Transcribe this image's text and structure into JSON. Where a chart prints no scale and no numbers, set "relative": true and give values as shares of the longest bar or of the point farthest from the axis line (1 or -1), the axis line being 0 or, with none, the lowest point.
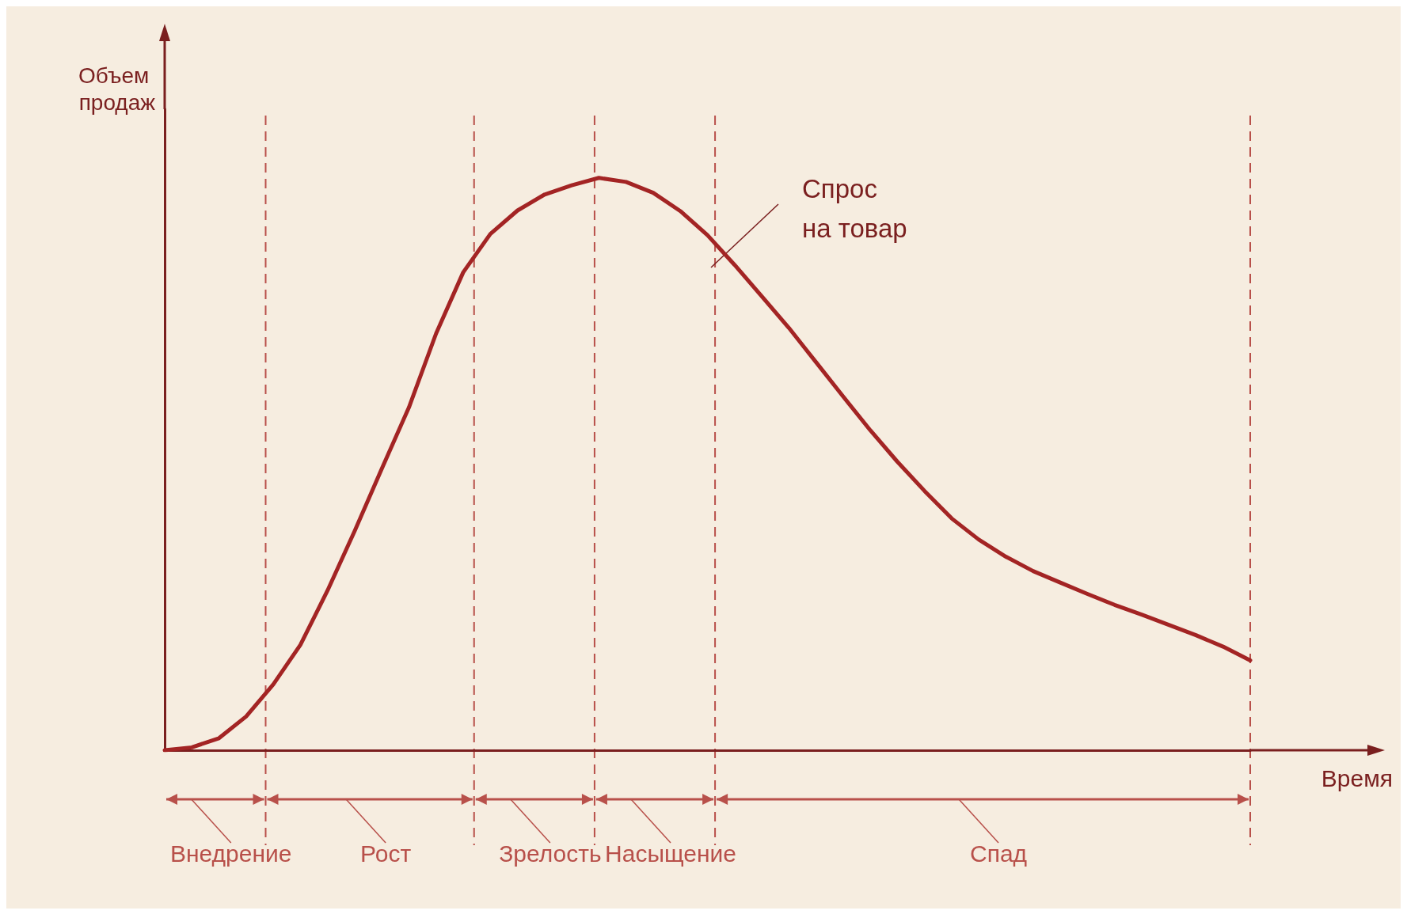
{
  "chart_data": {
    "type": "line",
    "relative": true,
    "xlabel": "Время",
    "ylabel": "Объем продаж",
    "grid": false,
    "marker": "none",
    "line_style": "solid",
    "categories": [
      null,
      null,
      null,
      null,
      null,
      null,
      null,
      null,
      null,
      null,
      null,
      null,
      null,
      null,
      null,
      null,
      null,
      null,
      null,
      null,
      null,
      null,
      null,
      null,
      null,
      null,
      null,
      null,
      null,
      null,
      null,
      null,
      null,
      null,
      null,
      null,
      null,
      null,
      null,
      null,
      null
    ],
    "series": [
      {
        "color": "#a32424",
        "values": [
          0,
          0.005,
          0.021,
          0.059,
          0.115,
          0.184,
          0.279,
          0.383,
          0.492,
          0.599,
          0.728,
          0.835,
          0.902,
          0.943,
          0.971,
          0.987,
          1,
          0.993,
          0.974,
          0.942,
          0.9,
          0.848,
          0.793,
          0.738,
          0.678,
          0.618,
          0.559,
          0.504,
          0.453,
          0.405,
          0.368,
          0.338,
          0.313,
          0.293,
          0.273,
          0.254,
          0.237,
          0.219,
          0.201,
          0.181,
          0.157
        ]
      }
    ],
    "annotations": [
      "Внедрение",
      "Рост",
      "Зрелость",
      "Насыщение",
      "Спад",
      "Спрос\nна товар"
    ]
  }
}
